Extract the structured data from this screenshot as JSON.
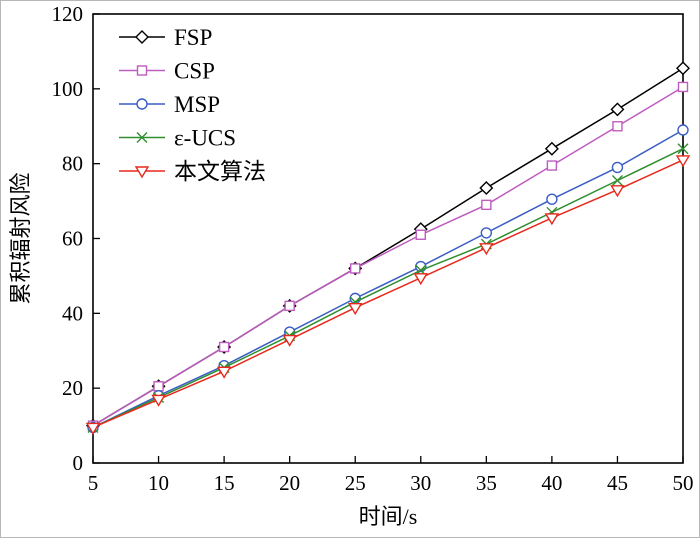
{
  "chart_data": {
    "type": "line",
    "title": "",
    "xlabel": "时间/s",
    "ylabel": "累积辐射风险",
    "xlim": [
      5,
      50
    ],
    "ylim": [
      0,
      120
    ],
    "xticks": [
      5,
      10,
      15,
      20,
      25,
      30,
      35,
      40,
      45,
      50
    ],
    "yticks": [
      0,
      20,
      40,
      60,
      80,
      100,
      120
    ],
    "grid": false,
    "legend_position": "top-left",
    "x": [
      5,
      10,
      15,
      20,
      25,
      30,
      35,
      40,
      45,
      50
    ],
    "series": [
      {
        "name": "FSP",
        "color": "#000000",
        "marker": "diamond",
        "values": [
          10,
          20.5,
          31,
          42,
          52,
          62.5,
          73.5,
          84,
          94.5,
          105.5
        ]
      },
      {
        "name": "CSP",
        "color": "#bf5cbf",
        "marker": "square",
        "values": [
          10,
          20.5,
          31,
          42,
          52,
          61,
          69,
          79.5,
          90,
          100.5
        ]
      },
      {
        "name": "MSP",
        "color": "#3a5ec4",
        "marker": "circle",
        "values": [
          9.5,
          18,
          26,
          35,
          44,
          52.5,
          61.5,
          70.5,
          79,
          89
        ]
      },
      {
        "name": "ε-UCS",
        "color": "#2f8f2f",
        "marker": "x",
        "values": [
          9.5,
          17.5,
          25.5,
          34,
          43,
          51.5,
          58.5,
          67,
          75.5,
          84
        ]
      },
      {
        "name": "本文算法",
        "color": "#e8291c",
        "marker": "triangle-down",
        "values": [
          9.5,
          17,
          24.5,
          33,
          41.5,
          49.5,
          57.5,
          65.5,
          73,
          81
        ]
      }
    ]
  }
}
